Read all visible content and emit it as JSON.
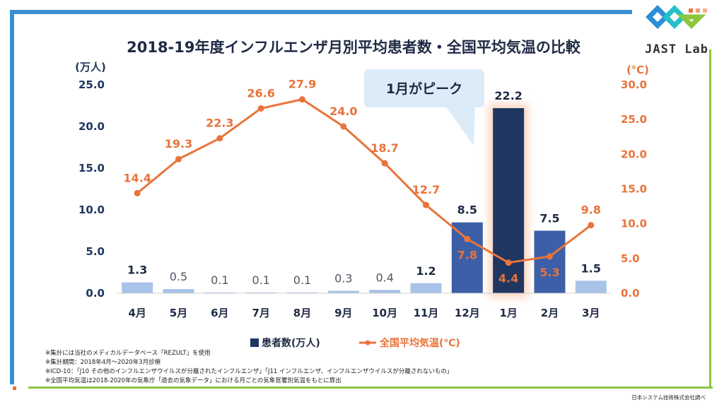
{
  "branding": {
    "logo_text": "JAST Lab",
    "footer": "日本システム技術株式会社調べ"
  },
  "chart_data": {
    "type": "bar+line",
    "title": "2018-19年度インフルエンザ月別平均患者数・全国平均気温の比較",
    "categories": [
      "4月",
      "5月",
      "6月",
      "7月",
      "8月",
      "9月",
      "10月",
      "11月",
      "12月",
      "1月",
      "2月",
      "3月"
    ],
    "series": [
      {
        "name": "患者数(万人)",
        "type": "bar",
        "axis": "left",
        "values": [
          1.3,
          0.5,
          0.1,
          0.1,
          0.1,
          0.3,
          0.4,
          1.2,
          8.5,
          22.2,
          7.5,
          1.5
        ],
        "labels": [
          "1.3",
          "0.5",
          "0.1",
          "0.1",
          "0.1",
          "0.3",
          "0.4",
          "1.2",
          "8.5",
          "22.2",
          "7.5",
          "1.5"
        ]
      },
      {
        "name": "全国平均気温(℃)",
        "type": "line",
        "axis": "right",
        "values": [
          14.4,
          19.3,
          22.3,
          26.6,
          27.9,
          24.0,
          18.7,
          12.7,
          7.8,
          4.4,
          5.3,
          9.8
        ],
        "labels": [
          "14.4",
          "19.3",
          "22.3",
          "26.6",
          "27.9",
          "24.0",
          "18.7",
          "12.7",
          "7.8",
          "4.4",
          "5.3",
          "9.8"
        ]
      }
    ],
    "left_axis": {
      "unit": "(万人)",
      "ylim": [
        0,
        25
      ],
      "ticks": [
        "0.0",
        "5.0",
        "10.0",
        "15.0",
        "20.0",
        "25.0"
      ]
    },
    "right_axis": {
      "unit": "(℃)",
      "ylim": [
        0,
        30
      ],
      "ticks": [
        "0.0",
        "5.0",
        "10.0",
        "15.0",
        "20.0",
        "25.0",
        "30.0"
      ]
    },
    "annotation": "1月がピーク",
    "legend": [
      "患者数(万人)",
      "全国平均気温(℃)"
    ],
    "colors": {
      "bar_light": "#a9c2e8",
      "bar_mid": "#3d5fa8",
      "bar_dark": "#1f3660",
      "line": "#e8743b",
      "axis_left": "#1f3660",
      "axis_right": "#e8743b",
      "callout": "#dcebf8"
    }
  },
  "notes": [
    "※集計には当社のメディカルデータベース「REZULT」を使用",
    "※集計期間：2018年4月～2020年3月診療",
    "※ICD-10：「J10 その他のインフルエンザウイルスが分離されたインフルエンザ」「J11 インフルエンザ、インフルエンザウイルスが分離されないもの」",
    "※全国平均気温は2018-2020年の気象庁「過去の気象データ」における月ごとの気象官署別気温をもとに算出"
  ]
}
